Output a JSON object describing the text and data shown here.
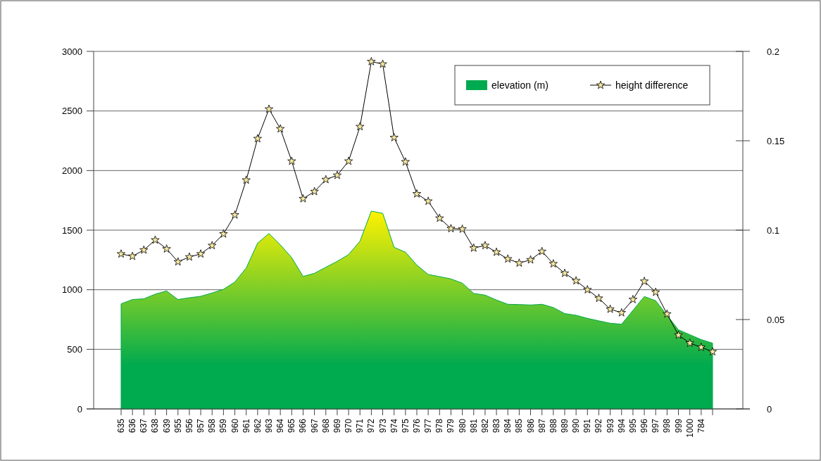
{
  "chart_data": {
    "type": "area",
    "categories": [
      "635",
      "636",
      "637",
      "638",
      "639",
      "955",
      "956",
      "957",
      "958",
      "959",
      "960",
      "961",
      "962",
      "963",
      "964",
      "965",
      "966",
      "967",
      "968",
      "969",
      "970",
      "971",
      "972",
      "973",
      "974",
      "975",
      "976",
      "977",
      "978",
      "979",
      "980",
      "981",
      "982",
      "983",
      "984",
      "985",
      "986",
      "987",
      "988",
      "989",
      "990",
      "991",
      "992",
      "993",
      "994",
      "995",
      "996",
      "997",
      "998",
      "999",
      "1000",
      "784",
      null
    ],
    "series": [
      {
        "name": "elevation (m)",
        "color": "#00aa4f",
        "values": [
          882,
          918,
          924,
          963,
          990,
          918,
          933,
          945,
          973,
          1004,
          1065,
          1183,
          1391,
          1472,
          1377,
          1269,
          1112,
          1138,
          1189,
          1238,
          1295,
          1407,
          1660,
          1641,
          1356,
          1315,
          1207,
          1128,
          1110,
          1091,
          1055,
          969,
          955,
          914,
          878,
          876,
          872,
          878,
          851,
          800,
          786,
          760,
          739,
          719,
          711,
          827,
          943,
          908,
          786,
          664,
          623,
          582,
          552
        ]
      },
      {
        "name": "height difference",
        "type": "line",
        "axis": "y2",
        "color": "#000000",
        "marker": "star",
        "values": [
          0.0867,
          0.0854,
          0.0889,
          0.0945,
          0.0895,
          0.0823,
          0.085,
          0.0867,
          0.0914,
          0.0979,
          0.1085,
          0.128,
          0.1512,
          0.1677,
          0.1567,
          0.1386,
          0.1176,
          0.1216,
          0.1283,
          0.1307,
          0.1386,
          0.1579,
          0.1943,
          0.1929,
          0.1518,
          0.1382,
          0.1203,
          0.1162,
          0.1067,
          0.1009,
          0.1006,
          0.09,
          0.0914,
          0.0877,
          0.0839,
          0.0816,
          0.0834,
          0.0881,
          0.0812,
          0.0759,
          0.0717,
          0.0667,
          0.0619,
          0.0558,
          0.0538,
          0.0612,
          0.0714,
          0.0653,
          0.0531,
          0.0413,
          0.0368,
          0.0345,
          0.032
        ]
      }
    ],
    "ylim": [
      0,
      3000
    ],
    "yticks": [
      0,
      500,
      1000,
      1500,
      2000,
      2500,
      3000
    ],
    "y2lim": [
      0,
      0.2
    ],
    "y2ticks": [
      0,
      0.05,
      0.1,
      0.15,
      0.2
    ],
    "grid": "y",
    "legend": "top right"
  }
}
